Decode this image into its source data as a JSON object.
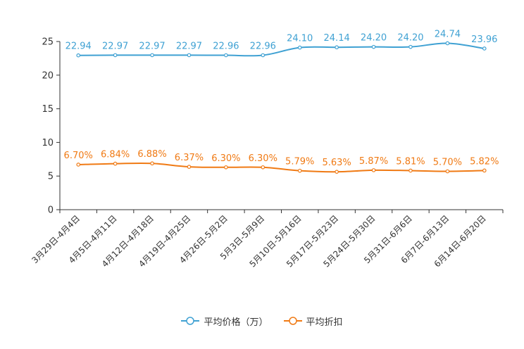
{
  "chart_data": {
    "type": "line",
    "title": "",
    "xlabel": "",
    "ylabel": "",
    "ylim": [
      0,
      25
    ],
    "yticks": [
      0,
      5,
      10,
      15,
      20,
      25
    ],
    "grid": false,
    "legend_position": "bottom",
    "categories": [
      "3月29日-4月4日",
      "4月5日-4月11日",
      "4月12日-4月18日",
      "4月19日-4月25日",
      "4月26日-5月2日",
      "5月3日-5月9日",
      "5月10日-5月16日",
      "5月17日-5月23日",
      "5月24日-5月30日",
      "5月31日-6月6日",
      "6月7日-6月13日",
      "6月14日-6月20日"
    ],
    "series": [
      {
        "name": "平均价格（万）",
        "color": "#3fa1d3",
        "values": [
          22.94,
          22.97,
          22.97,
          22.97,
          22.96,
          22.96,
          24.1,
          24.14,
          24.2,
          24.2,
          24.74,
          23.96
        ],
        "labels": [
          "22.94",
          "22.97",
          "22.97",
          "22.97",
          "22.96",
          "22.96",
          "24.10",
          "24.14",
          "24.20",
          "24.20",
          "24.74",
          "23.96"
        ]
      },
      {
        "name": "平均折扣",
        "color": "#f07a14",
        "values": [
          6.7,
          6.84,
          6.88,
          6.37,
          6.3,
          6.3,
          5.79,
          5.63,
          5.87,
          5.81,
          5.7,
          5.82
        ],
        "labels": [
          "6.70%",
          "6.84%",
          "6.88%",
          "6.37%",
          "6.30%",
          "6.30%",
          "5.79%",
          "5.63%",
          "5.87%",
          "5.81%",
          "5.70%",
          "5.82%"
        ]
      }
    ]
  }
}
